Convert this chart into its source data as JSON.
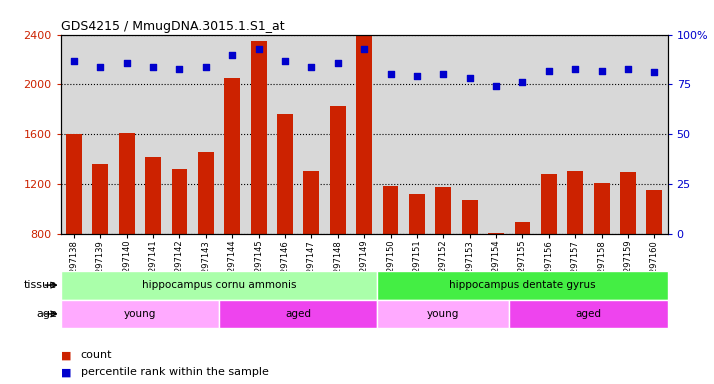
{
  "title": "GDS4215 / MmugDNA.3015.1.S1_at",
  "samples": [
    "GSM297138",
    "GSM297139",
    "GSM297140",
    "GSM297141",
    "GSM297142",
    "GSM297143",
    "GSM297144",
    "GSM297145",
    "GSM297146",
    "GSM297147",
    "GSM297148",
    "GSM297149",
    "GSM297150",
    "GSM297151",
    "GSM297152",
    "GSM297153",
    "GSM297154",
    "GSM297155",
    "GSM297156",
    "GSM297157",
    "GSM297158",
    "GSM297159",
    "GSM297160"
  ],
  "counts": [
    1600,
    1360,
    1610,
    1420,
    1320,
    1460,
    2050,
    2350,
    1760,
    1310,
    1830,
    2400,
    1185,
    1120,
    1175,
    1075,
    810,
    895,
    1280,
    1310,
    1210,
    1300,
    1155
  ],
  "percentiles": [
    87,
    84,
    86,
    84,
    83,
    84,
    90,
    93,
    87,
    84,
    86,
    93,
    80,
    79,
    80,
    78,
    74,
    76,
    82,
    83,
    82,
    83,
    81
  ],
  "ylim_left": [
    800,
    2400
  ],
  "ylim_right": [
    0,
    100
  ],
  "yticks_left": [
    800,
    1200,
    1600,
    2000,
    2400
  ],
  "yticks_right": [
    0,
    25,
    50,
    75,
    100
  ],
  "bar_color": "#cc2200",
  "dot_color": "#0000cc",
  "grid_color": "#000000",
  "bg_color": "#d8d8d8",
  "tissue_groups": [
    {
      "label": "hippocampus cornu ammonis",
      "start": 0,
      "end": 12,
      "color": "#aaffaa"
    },
    {
      "label": "hippocampus dentate gyrus",
      "start": 12,
      "end": 23,
      "color": "#44ee44"
    }
  ],
  "age_groups": [
    {
      "label": "young",
      "start": 0,
      "end": 6,
      "color": "#ffaaff"
    },
    {
      "label": "aged",
      "start": 6,
      "end": 12,
      "color": "#ee44ee"
    },
    {
      "label": "young",
      "start": 12,
      "end": 17,
      "color": "#ffaaff"
    },
    {
      "label": "aged",
      "start": 17,
      "end": 23,
      "color": "#ee44ee"
    }
  ],
  "tissue_label": "tissue",
  "age_label": "age",
  "legend_count_label": "count",
  "legend_pct_label": "percentile rank within the sample"
}
